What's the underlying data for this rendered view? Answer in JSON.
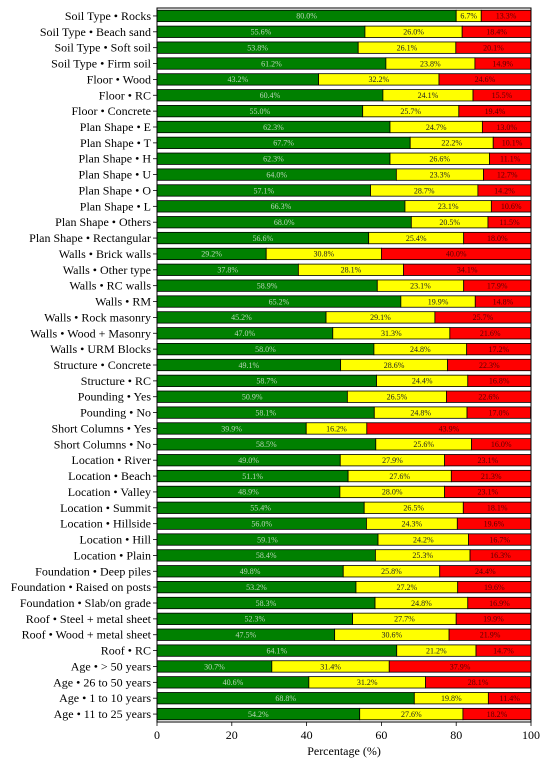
{
  "chart_data": {
    "type": "bar",
    "orientation": "horizontal",
    "stacked": true,
    "categories": [
      "Soil Type • Rocks",
      "Soil Type • Beach sand",
      "Soil Type • Soft soil",
      "Soil Type • Firm soil",
      "Floor • Wood",
      "Floor • RC",
      "Floor • Concrete",
      "Plan Shape • E",
      "Plan Shape • T",
      "Plan Shape • H",
      "Plan Shape • U",
      "Plan Shape • O",
      "Plan Shape • L",
      "Plan Shape • Others",
      "Plan Shape • Rectangular",
      "Walls • Brick walls",
      "Walls • Other type",
      "Walls • RC walls",
      "Walls • RM",
      "Walls • Rock masonry",
      "Walls • Wood + Masonry",
      "Walls • URM Blocks",
      "Structure • Concrete",
      "Structure • RC",
      "Pounding • Yes",
      "Pounding • No",
      "Short Columns • Yes",
      "Short Columns • No",
      "Location • River",
      "Location • Beach",
      "Location • Valley",
      "Location • Summit",
      "Location • Hillside",
      "Location • Hill",
      "Location • Plain",
      "Foundation • Deep piles",
      "Foundation • Raised on posts",
      "Foundation • Slab/on grade",
      "Roof • Steel + metal sheet",
      "Roof • Wood + metal sheet",
      "Roof • RC",
      "Age • > 50 years",
      "Age • 26 to 50 years",
      "Age • 1 to 10 years",
      "Age • 11 to 25 years"
    ],
    "series": [
      {
        "color": "#008000",
        "label_color": "#b9d6b9",
        "values": [
          80.0,
          55.6,
          53.8,
          61.2,
          43.2,
          60.4,
          55.0,
          62.3,
          67.7,
          62.3,
          64.0,
          57.1,
          66.3,
          68.0,
          56.6,
          29.2,
          37.8,
          58.9,
          65.2,
          45.2,
          47.0,
          58.0,
          49.1,
          58.7,
          50.9,
          58.1,
          39.9,
          58.5,
          49.0,
          51.1,
          48.9,
          55.4,
          56.0,
          59.1,
          58.4,
          49.8,
          53.2,
          58.3,
          52.3,
          47.5,
          64.1,
          30.7,
          40.6,
          68.8,
          54.2
        ]
      },
      {
        "color": "#ffff00",
        "label_color": "#222222",
        "values": [
          6.7,
          26.0,
          26.1,
          23.8,
          32.2,
          24.1,
          25.7,
          24.7,
          22.2,
          26.6,
          23.3,
          28.7,
          23.1,
          20.5,
          25.4,
          30.8,
          28.1,
          23.1,
          19.9,
          29.1,
          31.3,
          24.8,
          28.6,
          24.4,
          26.5,
          24.8,
          16.2,
          25.6,
          27.9,
          27.6,
          28.0,
          26.5,
          24.3,
          24.2,
          25.3,
          25.8,
          27.2,
          24.8,
          27.7,
          30.6,
          21.2,
          31.4,
          31.2,
          19.8,
          27.6
        ]
      },
      {
        "color": "#ff0000",
        "label_color": "#5a0000",
        "values": [
          13.3,
          18.4,
          20.1,
          14.9,
          24.6,
          15.5,
          19.4,
          13.0,
          10.1,
          11.1,
          12.7,
          14.2,
          10.6,
          11.5,
          18.0,
          40.0,
          34.1,
          17.9,
          14.8,
          25.7,
          21.6,
          17.2,
          22.3,
          16.8,
          22.6,
          17.0,
          43.9,
          16.0,
          23.1,
          21.3,
          23.1,
          18.1,
          19.6,
          16.7,
          16.3,
          24.4,
          19.6,
          16.9,
          19.9,
          21.9,
          14.7,
          37.9,
          28.1,
          11.4,
          18.2
        ]
      }
    ],
    "xlabel": "Percentage (%)",
    "ylabel": "",
    "xlim": [
      0,
      100
    ],
    "xticks": [
      0,
      20,
      40,
      60,
      80,
      100
    ],
    "grid": false,
    "legend": "none"
  }
}
